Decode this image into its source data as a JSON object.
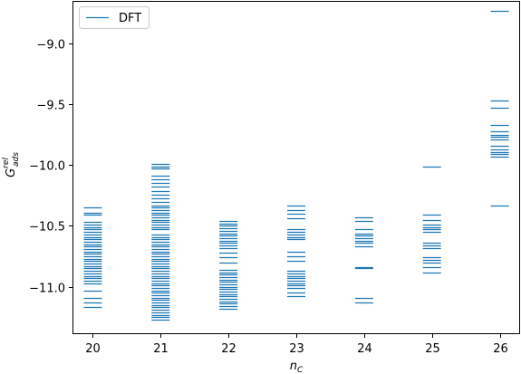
{
  "chart_data": {
    "type": "scatter",
    "marker": "horizontal-line",
    "color": "#1f77b4",
    "grid": false,
    "legend": {
      "entries": [
        "DFT"
      ],
      "placement": "top-left"
    },
    "xlabel": {
      "base": "n",
      "sub": "C"
    },
    "ylabel": {
      "base": "G",
      "sup": "rel",
      "sub": "ads"
    },
    "xlim": [
      19.7,
      26.3
    ],
    "ylim": [
      -11.39,
      -8.65
    ],
    "xticks": [
      20,
      21,
      22,
      23,
      24,
      25,
      26
    ],
    "yticks": [
      -9.0,
      -9.5,
      -10.0,
      -10.5,
      -11.0
    ],
    "ytick_labels": [
      "−9.0",
      "−9.5",
      "−10.0",
      "−10.5",
      "−11.0"
    ],
    "series": [
      {
        "name": "DFT",
        "points": [
          {
            "x": 20,
            "y": [
              -10.35,
              -10.39,
              -10.41,
              -10.47,
              -10.49,
              -10.51,
              -10.53,
              -10.55,
              -10.57,
              -10.59,
              -10.61,
              -10.63,
              -10.65,
              -10.67,
              -10.69,
              -10.71,
              -10.73,
              -10.75,
              -10.77,
              -10.79,
              -10.81,
              -10.83,
              -10.85,
              -10.87,
              -10.89,
              -10.91,
              -10.93,
              -10.95,
              -10.97,
              -11.03,
              -11.09,
              -11.13,
              -11.17
            ]
          },
          {
            "x": 21,
            "y": [
              -9.99,
              -10.01,
              -10.03,
              -10.09,
              -10.12,
              -10.15,
              -10.18,
              -10.21,
              -10.24,
              -10.27,
              -10.3,
              -10.33,
              -10.35,
              -10.37,
              -10.39,
              -10.41,
              -10.43,
              -10.45,
              -10.47,
              -10.49,
              -10.51,
              -10.53,
              -10.57,
              -10.59,
              -10.61,
              -10.63,
              -10.65,
              -10.67,
              -10.69,
              -10.71,
              -10.73,
              -10.75,
              -10.77,
              -10.79,
              -10.81,
              -10.83,
              -10.85,
              -10.87,
              -10.89,
              -10.91,
              -10.93,
              -10.95,
              -10.97,
              -10.99,
              -11.01,
              -11.03,
              -11.05,
              -11.07,
              -11.09,
              -11.11,
              -11.13,
              -11.15,
              -11.17,
              -11.19,
              -11.21,
              -11.23,
              -11.25,
              -11.27
            ]
          },
          {
            "x": 22,
            "y": [
              -10.46,
              -10.48,
              -10.5,
              -10.52,
              -10.54,
              -10.56,
              -10.58,
              -10.6,
              -10.62,
              -10.64,
              -10.66,
              -10.68,
              -10.72,
              -10.76,
              -10.8,
              -10.86,
              -10.88,
              -10.9,
              -10.92,
              -10.94,
              -10.96,
              -10.98,
              -11.0,
              -11.02,
              -11.04,
              -11.06,
              -11.08,
              -11.1,
              -11.12,
              -11.14,
              -11.16,
              -11.18
            ]
          },
          {
            "x": 23,
            "y": [
              -10.33,
              -10.37,
              -10.4,
              -10.44,
              -10.53,
              -10.55,
              -10.57,
              -10.59,
              -10.61,
              -10.71,
              -10.75,
              -10.79,
              -10.87,
              -10.89,
              -10.91,
              -10.93,
              -10.95,
              -10.97,
              -10.99,
              -11.01,
              -11.05,
              -11.08
            ]
          },
          {
            "x": 24,
            "y": [
              -10.43,
              -10.46,
              -10.53,
              -10.56,
              -10.58,
              -10.6,
              -10.62,
              -10.64,
              -10.67,
              -10.84,
              -10.85,
              -11.09,
              -11.13
            ]
          },
          {
            "x": 25,
            "y": [
              -10.01,
              -10.41,
              -10.45,
              -10.49,
              -10.51,
              -10.53,
              -10.55,
              -10.64,
              -10.66,
              -10.68,
              -10.76,
              -10.78,
              -10.8,
              -10.84,
              -10.88
            ]
          },
          {
            "x": 26,
            "y": [
              -8.73,
              -9.47,
              -9.53,
              -9.67,
              -9.72,
              -9.75,
              -9.77,
              -9.79,
              -9.84,
              -9.87,
              -9.89,
              -9.91,
              -9.93,
              -10.33
            ]
          }
        ]
      }
    ]
  }
}
